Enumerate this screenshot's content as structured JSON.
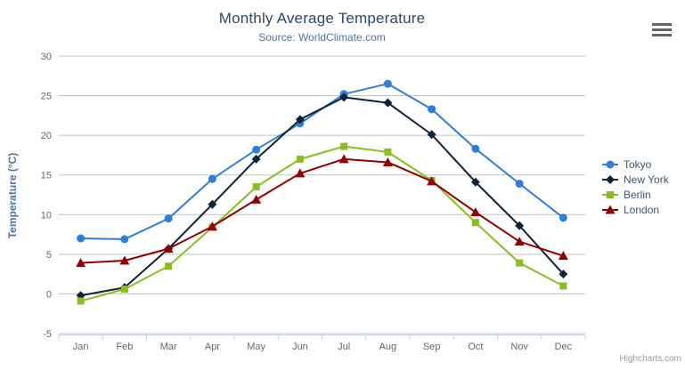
{
  "header": {
    "menu_icon": "hamburger-icon"
  },
  "credits": "Highcharts.com",
  "colors": {
    "grid": "#c0c0c0",
    "axis_line": "#c0d0e0",
    "tick": "#c0d0e0",
    "title": "#274b6d",
    "subtitle": "#4d759e",
    "axis_title": "#4d759e",
    "tick_label": "#666666",
    "legend_text": "#3e576f",
    "credits_text": "#999999"
  },
  "chart_data": {
    "type": "line",
    "title": "Monthly Average Temperature",
    "subtitle": "Source: WorldClimate.com",
    "categories": [
      "Jan",
      "Feb",
      "Mar",
      "Apr",
      "May",
      "Jun",
      "Jul",
      "Aug",
      "Sep",
      "Oct",
      "Nov",
      "Dec"
    ],
    "xlabel": "",
    "ylabel": "Temperature (°C)",
    "ylim": [
      -5,
      30
    ],
    "yticks": [
      -5,
      0,
      5,
      10,
      15,
      20,
      25,
      30
    ],
    "grid": true,
    "legend_position": "right",
    "series": [
      {
        "name": "Tokyo",
        "color": "#2f7ed8",
        "marker": "circle",
        "values": [
          7.0,
          6.9,
          9.5,
          14.5,
          18.2,
          21.5,
          25.2,
          26.5,
          23.3,
          18.3,
          13.9,
          9.6
        ]
      },
      {
        "name": "New York",
        "color": "#0d233a",
        "marker": "diamond",
        "values": [
          -0.2,
          0.8,
          5.7,
          11.3,
          17.0,
          22.0,
          24.8,
          24.1,
          20.1,
          14.1,
          8.6,
          2.5
        ]
      },
      {
        "name": "Berlin",
        "color": "#8bbc21",
        "marker": "square",
        "values": [
          -0.9,
          0.6,
          3.5,
          8.4,
          13.5,
          17.0,
          18.6,
          17.9,
          14.3,
          9.0,
          3.9,
          1.0
        ]
      },
      {
        "name": "London",
        "color": "#910000",
        "marker": "triangle",
        "values": [
          3.9,
          4.2,
          5.7,
          8.5,
          11.9,
          15.2,
          17.0,
          16.6,
          14.2,
          10.3,
          6.6,
          4.8
        ]
      }
    ]
  }
}
